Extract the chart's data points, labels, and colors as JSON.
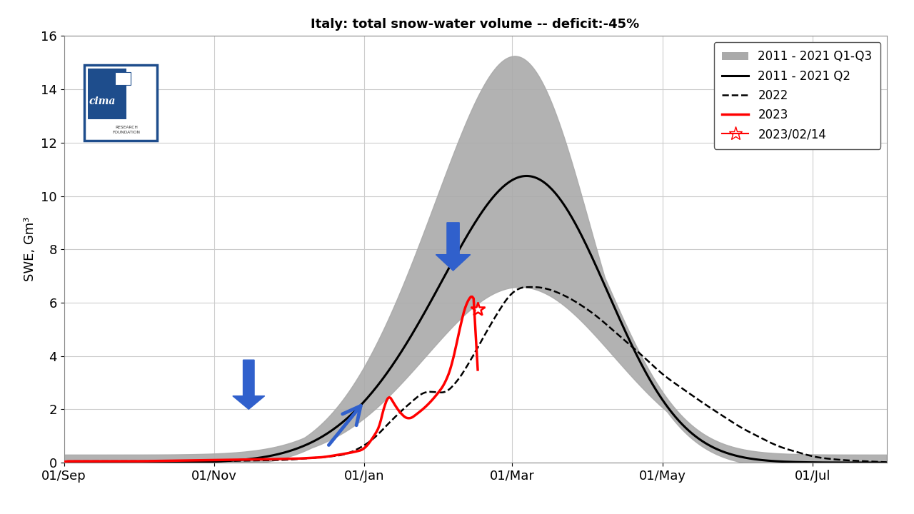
{
  "title": "Italy: total snow-water volume -- deficit:-45%",
  "ylabel": "SWE, Gm³",
  "xlim_days": [
    0,
    334
  ],
  "ylim": [
    0,
    16
  ],
  "yticks": [
    0,
    2,
    4,
    6,
    8,
    10,
    12,
    14,
    16
  ],
  "xtick_labels": [
    "01/Sep",
    "01/Nov",
    "01/Jan",
    "01/Mar",
    "01/May",
    "01/Jul"
  ],
  "xtick_days": [
    0,
    61,
    122,
    182,
    243,
    304
  ],
  "background_color": "#ffffff",
  "grid_color": "#cccccc",
  "q2_color": "#000000",
  "band_color": "#aaaaaa",
  "line_2022_color": "#000000",
  "line_2023_color": "#ff0000",
  "arrow_color": "#3060cc",
  "legend_labels": [
    "2011 - 2021 Q1-Q3",
    "2011 - 2021 Q2",
    "2022",
    "2023",
    "2023/02/14"
  ],
  "star_day": 168,
  "star_value": 5.75
}
